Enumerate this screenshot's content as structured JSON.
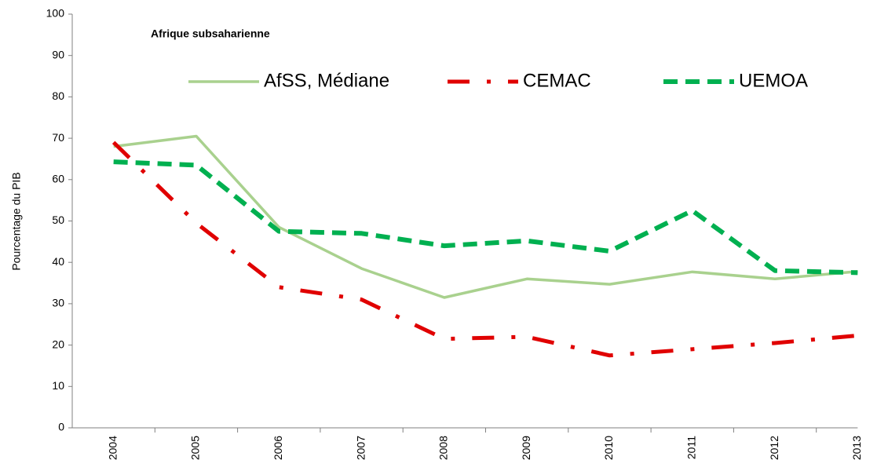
{
  "chart_data": {
    "type": "line",
    "annotation": "Afrique subsaharienne",
    "y_label": "Pourcentage du PIB",
    "categories": [
      "2004",
      "2005",
      "2006",
      "2007",
      "2008",
      "2009",
      "2010",
      "2011",
      "2012",
      "2013"
    ],
    "series": [
      {
        "name": "AfSS, Médiane",
        "color": "#a9d18e",
        "values": [
          68,
          70.5,
          48.5,
          38.5,
          31.5,
          36,
          34.7,
          37.7,
          36,
          37.8
        ]
      },
      {
        "name": "CEMAC",
        "color": "#e00000",
        "values": [
          69,
          49.5,
          34,
          31,
          21.5,
          22,
          17.5,
          19,
          20.5,
          22.3
        ]
      },
      {
        "name": "UEMOA",
        "color": "#00b050",
        "values": [
          64.3,
          63.5,
          47.5,
          47,
          44,
          45.2,
          42.7,
          52.5,
          38,
          37.5
        ]
      }
    ],
    "ylim": [
      0,
      100
    ],
    "yticks": [
      0,
      10,
      20,
      30,
      40,
      50,
      60,
      70,
      80,
      90,
      100
    ],
    "legend": "top"
  }
}
